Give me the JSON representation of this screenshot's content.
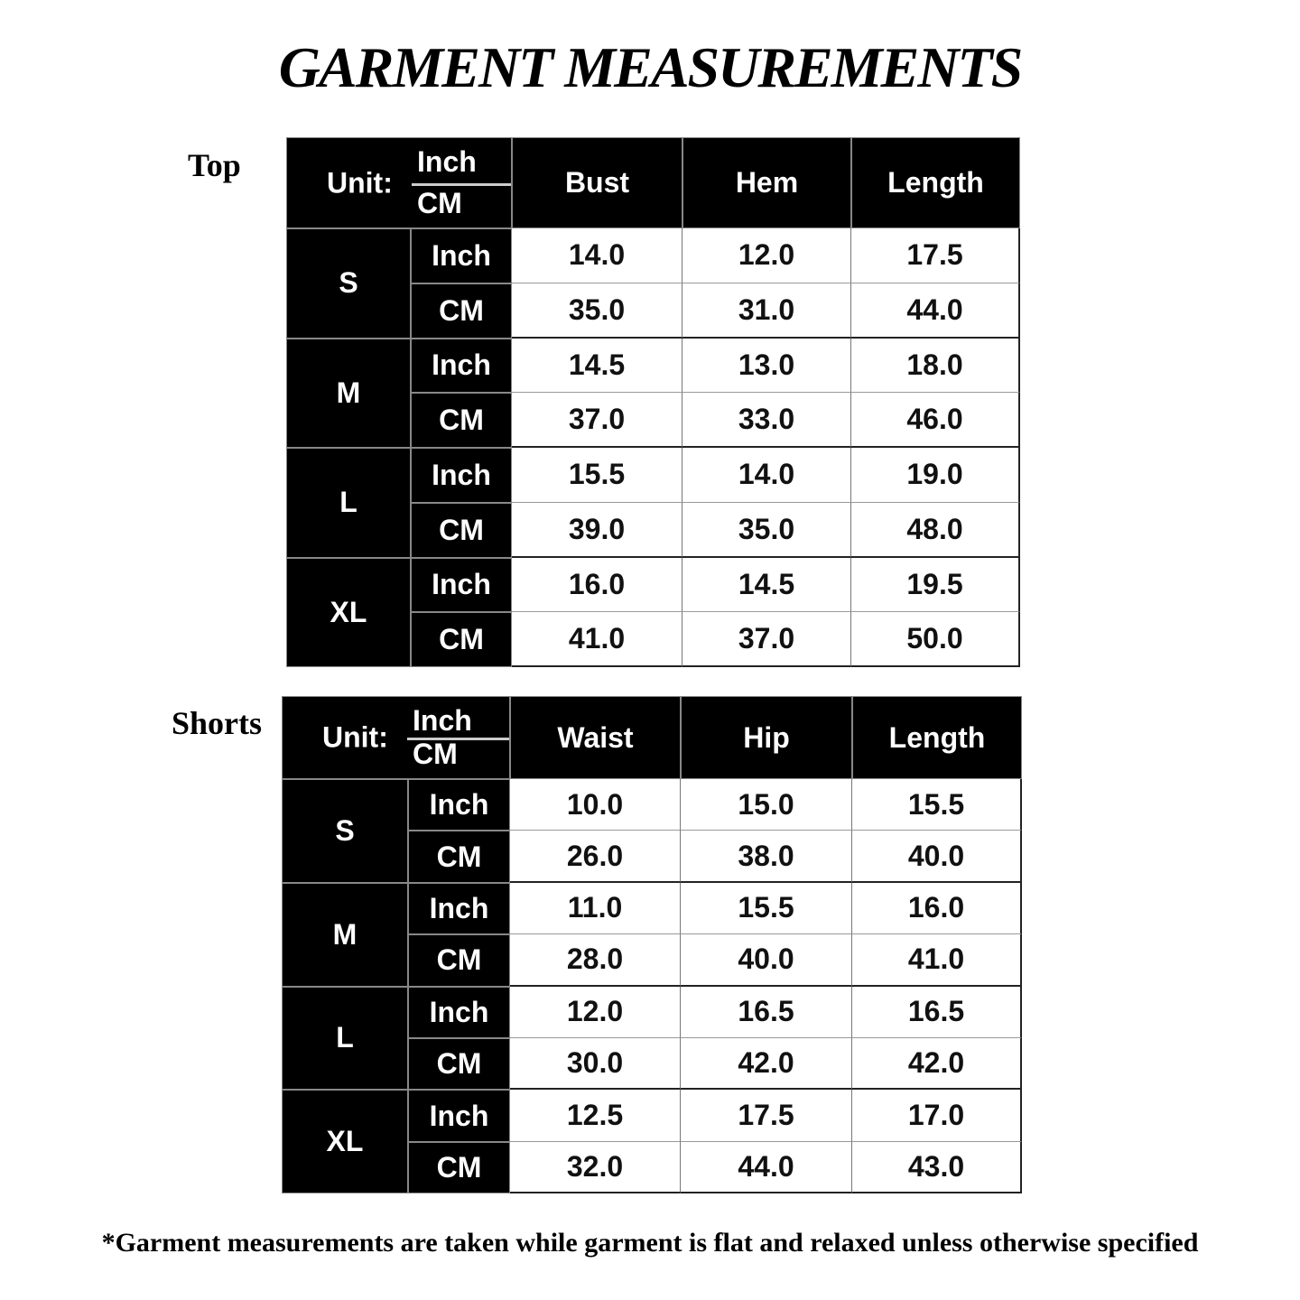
{
  "title": "GARMENT MEASUREMENTS",
  "footnote": "*Garment measurements are taken while garment is flat and relaxed unless otherwise specified",
  "tables": [
    {
      "label": "Top",
      "unit_label": "Unit:",
      "unit_a": "Inch",
      "unit_b": "CM",
      "columns": [
        "Bust",
        "Hem",
        "Length"
      ],
      "rows": [
        {
          "size": "S",
          "inch": [
            "14.0",
            "12.0",
            "17.5"
          ],
          "cm": [
            "35.0",
            "31.0",
            "44.0"
          ]
        },
        {
          "size": "M",
          "inch": [
            "14.5",
            "13.0",
            "18.0"
          ],
          "cm": [
            "37.0",
            "33.0",
            "46.0"
          ]
        },
        {
          "size": "L",
          "inch": [
            "15.5",
            "14.0",
            "19.0"
          ],
          "cm": [
            "39.0",
            "35.0",
            "48.0"
          ]
        },
        {
          "size": "XL",
          "inch": [
            "16.0",
            "14.5",
            "19.5"
          ],
          "cm": [
            "41.0",
            "37.0",
            "50.0"
          ]
        }
      ],
      "inch_label": "Inch",
      "cm_label": "CM"
    },
    {
      "label": "Shorts",
      "unit_label": "Unit:",
      "unit_a": "Inch",
      "unit_b": "CM",
      "columns": [
        "Waist",
        "Hip",
        "Length"
      ],
      "rows": [
        {
          "size": "S",
          "inch": [
            "10.0",
            "15.0",
            "15.5"
          ],
          "cm": [
            "26.0",
            "38.0",
            "40.0"
          ]
        },
        {
          "size": "M",
          "inch": [
            "11.0",
            "15.5",
            "16.0"
          ],
          "cm": [
            "28.0",
            "40.0",
            "41.0"
          ]
        },
        {
          "size": "L",
          "inch": [
            "12.0",
            "16.5",
            "16.5"
          ],
          "cm": [
            "30.0",
            "42.0",
            "42.0"
          ]
        },
        {
          "size": "XL",
          "inch": [
            "12.5",
            "17.5",
            "17.0"
          ],
          "cm": [
            "32.0",
            "44.0",
            "43.0"
          ]
        }
      ],
      "inch_label": "Inch",
      "cm_label": "CM"
    }
  ]
}
